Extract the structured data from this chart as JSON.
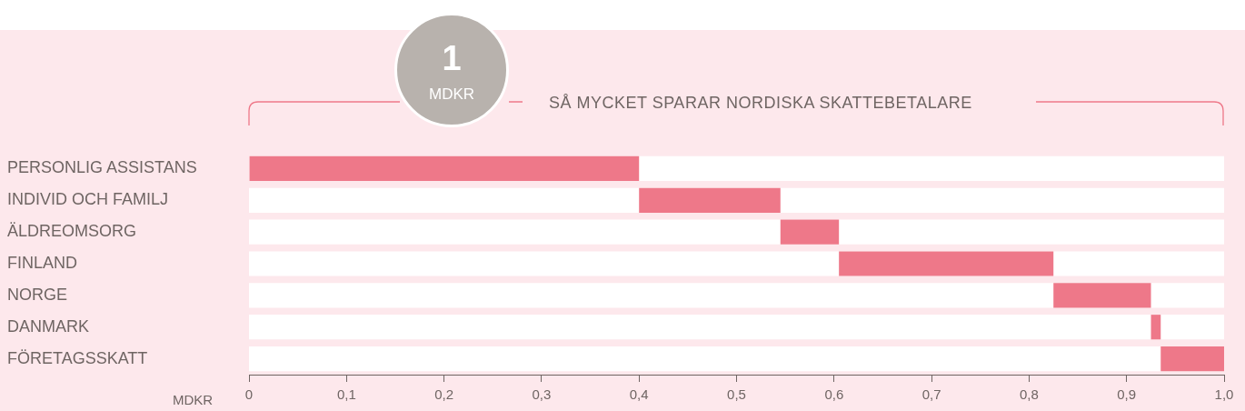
{
  "chart_data": {
    "type": "bar",
    "orientation": "horizontal",
    "title": "SÅ MYCKET SPARAR NORDISKA SKATTEBETALARE",
    "xlabel": "MDKR",
    "annotations": [
      "1",
      "MDKR"
    ],
    "categories": [
      "PERSONLIG ASSISTANS",
      "INDIVID OCH FAMILJ",
      "ÄLDREOMSORG",
      "FINLAND",
      "NORGE",
      "DANMARK",
      "FÖRETAGSSKATT"
    ],
    "base": [
      0,
      0.4,
      0.545,
      0.605,
      0.825,
      0.925,
      0.935
    ],
    "values": [
      0.4,
      0.145,
      0.06,
      0.22,
      0.1,
      0.01,
      0.065
    ],
    "color": "#ee7889",
    "xlim": [
      0,
      1
    ],
    "xticks": [
      0,
      {
        "value": 0.1,
        "label": "0,1"
      },
      {
        "value": 0.2,
        "label": "0,2"
      },
      {
        "value": 0.3,
        "label": "0,3"
      },
      {
        "value": 0.4,
        "label": "0,4"
      },
      {
        "value": 0.5,
        "label": "0,5"
      },
      {
        "value": 0.6,
        "label": "0,6"
      },
      {
        "value": 0.7,
        "label": "0,7"
      },
      {
        "value": 0.8,
        "label": "0,8"
      },
      {
        "value": 0.9,
        "label": "0,9"
      },
      {
        "value": 1,
        "label": "1,0"
      }
    ]
  }
}
